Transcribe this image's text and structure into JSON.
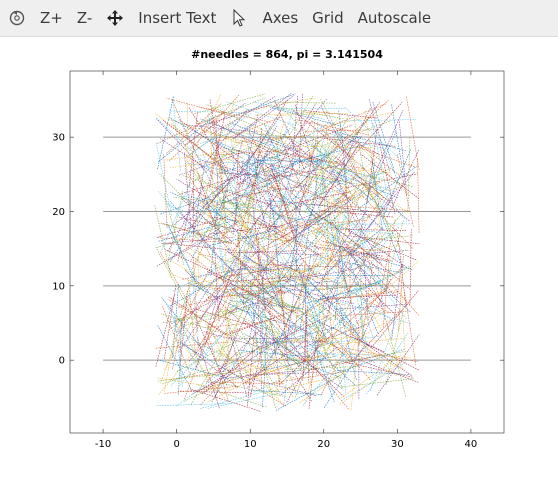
{
  "toolbar": {
    "items": [
      {
        "icon": "rotate-icon",
        "label": ""
      },
      {
        "icon": "",
        "label": "Z+"
      },
      {
        "icon": "",
        "label": "Z-"
      },
      {
        "icon": "pan-move-icon",
        "label": ""
      },
      {
        "icon": "",
        "label": "Insert Text"
      },
      {
        "icon": "pointer-arrow-icon",
        "label": ""
      },
      {
        "icon": "",
        "label": "Axes"
      },
      {
        "icon": "",
        "label": "Grid"
      },
      {
        "icon": "",
        "label": "Autoscale"
      }
    ]
  },
  "chart_data": {
    "type": "line",
    "title": "#needles = 864, pi = 3.141504",
    "xlabel": "",
    "ylabel": "",
    "xlim": [
      -14.5,
      44.5
    ],
    "ylim": [
      -9.8,
      38.9
    ],
    "xticks": [
      -10,
      0,
      10,
      20,
      30,
      40
    ],
    "yticks": [
      0,
      10,
      20,
      30
    ],
    "grid": false,
    "reference_lines_y": [
      0,
      10,
      20,
      30
    ],
    "reference_lines_x_range": [
      -10,
      40
    ],
    "needle_count": 864,
    "needle_length": 10,
    "needle_region": {
      "x": [
        -3,
        33
      ],
      "y": [
        -7,
        36
      ]
    },
    "colors": [
      "#0072bd",
      "#d95319",
      "#edb120",
      "#7e2f8e",
      "#77ac30",
      "#4dbeee",
      "#a2142f"
    ],
    "reference_line_color": "#999999"
  }
}
